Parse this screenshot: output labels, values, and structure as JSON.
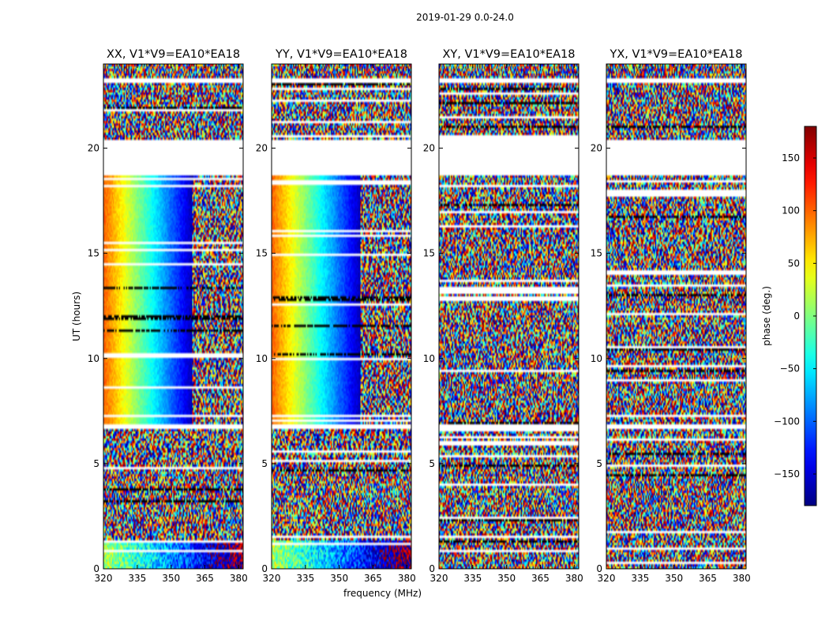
{
  "figure_title": "2019-01-29 0.0-24.0",
  "colorbar": {
    "label": "phase (deg.)",
    "range": [
      -180,
      180
    ],
    "ticks": [
      150,
      100,
      50,
      0,
      -50,
      -100,
      -150
    ],
    "tick_labels": [
      "150",
      "100",
      "50",
      "0",
      "−50",
      "−100",
      "−150"
    ],
    "colormap": "jet"
  },
  "chart_data": [
    {
      "type": "heatmap",
      "title": "XX, V1*V9=EA10*EA18",
      "xlabel": "",
      "ylabel": "UT (hours)",
      "xlim": [
        320,
        382
      ],
      "ylim": [
        0,
        24
      ],
      "xticks": [
        "320",
        "335",
        "350",
        "365",
        "380"
      ],
      "yticks": [
        "0",
        "5",
        "10",
        "15",
        "20"
      ],
      "pattern": "coherent",
      "flagged_hours": [
        [
          20.4,
          18.7
        ],
        [
          6.9,
          6.6
        ],
        [
          21.8,
          21.7
        ],
        [
          23.3,
          23.15
        ]
      ]
    },
    {
      "type": "heatmap",
      "title": "YY, V1*V9=EA10*EA18",
      "xlabel": "frequency (MHz)",
      "ylabel": "",
      "xlim": [
        320,
        382
      ],
      "ylim": [
        0,
        24
      ],
      "xticks": [
        "320",
        "335",
        "350",
        "365",
        "380"
      ],
      "yticks": [
        "0",
        "5",
        "10",
        "15",
        "20"
      ],
      "pattern": "coherent",
      "flagged_hours": [
        [
          20.4,
          18.7
        ],
        [
          6.9,
          6.6
        ],
        [
          21.8,
          21.7
        ],
        [
          23.3,
          23.15
        ]
      ]
    },
    {
      "type": "heatmap",
      "title": "XY, V1*V9=EA10*EA18",
      "xlabel": "",
      "ylabel": "",
      "xlim": [
        320,
        382
      ],
      "ylim": [
        0,
        24
      ],
      "xticks": [
        "320",
        "335",
        "350",
        "365",
        "380"
      ],
      "yticks": [
        "0",
        "5",
        "10",
        "15",
        "20"
      ],
      "pattern": "noise",
      "flagged_hours": [
        [
          20.4,
          18.7
        ],
        [
          6.9,
          6.6
        ],
        [
          21.8,
          21.7
        ],
        [
          23.3,
          23.15
        ]
      ]
    },
    {
      "type": "heatmap",
      "title": "YX, V1*V9=EA10*EA18",
      "xlabel": "",
      "ylabel": "",
      "xlim": [
        320,
        382
      ],
      "ylim": [
        0,
        24
      ],
      "xticks": [
        "320",
        "335",
        "350",
        "365",
        "380"
      ],
      "yticks": [
        "0",
        "5",
        "10",
        "15",
        "20"
      ],
      "pattern": "noise",
      "flagged_hours": [
        [
          20.4,
          18.7
        ],
        [
          6.9,
          6.6
        ],
        [
          21.8,
          21.7
        ],
        [
          23.3,
          23.15
        ]
      ]
    }
  ]
}
